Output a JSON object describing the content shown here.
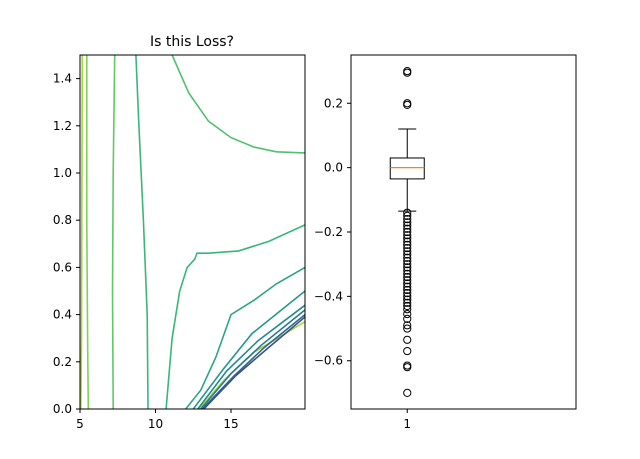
{
  "chart_data": [
    {
      "type": "contour",
      "title": "Is this Loss?",
      "xlabel": "",
      "ylabel": "",
      "xlim": [
        5,
        19.9
      ],
      "ylim": [
        0,
        1.5
      ],
      "xticks": [
        5,
        10,
        15
      ],
      "yticks": [
        0.0,
        0.2,
        0.4,
        0.6,
        0.8,
        1.0,
        1.2,
        1.4
      ],
      "xtick_labels": [
        "5",
        "10",
        "15"
      ],
      "ytick_labels": [
        "0.0",
        "0.2",
        "0.4",
        "0.6",
        "0.8",
        "1.0",
        "1.2",
        "1.4"
      ],
      "grid": false,
      "contours": [
        {
          "color": "#a7d63a",
          "points": [
            [
              5.15,
              1.5
            ],
            [
              5.12,
              0.8
            ],
            [
              5.1,
              0.3
            ],
            [
              5.05,
              0.0
            ]
          ]
        },
        {
          "color": "#a7d63a",
          "points": [
            [
              12.9,
              0.0
            ],
            [
              14.5,
              0.12
            ],
            [
              16.5,
              0.24
            ],
            [
              19.9,
              0.37
            ]
          ]
        },
        {
          "color": "#7fd15a",
          "points": [
            [
              5.45,
              1.5
            ],
            [
              5.45,
              0.8
            ],
            [
              5.5,
              0.3
            ],
            [
              5.55,
              0.0
            ]
          ]
        },
        {
          "color": "#5ec962",
          "points": [
            [
              7.3,
              1.5
            ],
            [
              7.2,
              1.0
            ],
            [
              7.15,
              0.5
            ],
            [
              7.2,
              0.0
            ]
          ]
        },
        {
          "color": "#4fc16b",
          "points": [
            [
              11.1,
              1.5
            ],
            [
              12.2,
              1.34
            ],
            [
              13.5,
              1.22
            ],
            [
              15.0,
              1.15
            ],
            [
              16.5,
              1.11
            ],
            [
              18.0,
              1.09
            ],
            [
              19.9,
              1.085
            ]
          ]
        },
        {
          "color": "#3bb67a",
          "points": [
            [
              8.7,
              1.5
            ],
            [
              8.9,
              1.2
            ],
            [
              9.2,
              0.8
            ],
            [
              9.45,
              0.4
            ],
            [
              9.5,
              0.0
            ]
          ]
        },
        {
          "color": "#35b77a",
          "points": [
            [
              10.7,
              0.0
            ],
            [
              11.1,
              0.3
            ],
            [
              11.6,
              0.5
            ],
            [
              12.1,
              0.6
            ],
            [
              12.6,
              0.635
            ],
            [
              12.75,
              0.66
            ],
            [
              13.5,
              0.66
            ],
            [
              15.5,
              0.67
            ],
            [
              17.5,
              0.71
            ],
            [
              19.9,
              0.78
            ]
          ]
        },
        {
          "color": "#2ea389",
          "points": [
            [
              12.0,
              0.0
            ],
            [
              13.0,
              0.08
            ],
            [
              14.0,
              0.22
            ],
            [
              15.0,
              0.4
            ],
            [
              16.5,
              0.46
            ],
            [
              18.0,
              0.53
            ],
            [
              19.9,
              0.6
            ]
          ]
        },
        {
          "color": "#23968b",
          "points": [
            [
              12.5,
              0.0
            ],
            [
              14.5,
              0.17
            ],
            [
              16.4,
              0.32
            ],
            [
              19.9,
              0.5
            ]
          ]
        },
        {
          "color": "#23898e",
          "points": [
            [
              12.8,
              0.0
            ],
            [
              14.7,
              0.16
            ],
            [
              16.8,
              0.29
            ],
            [
              19.9,
              0.44
            ]
          ]
        },
        {
          "color": "#2a788e",
          "points": [
            [
              13.0,
              0.0
            ],
            [
              15.0,
              0.15
            ],
            [
              17.0,
              0.27
            ],
            [
              19.9,
              0.42
            ]
          ]
        },
        {
          "color": "#30688e",
          "points": [
            [
              13.1,
              0.0
            ],
            [
              15.2,
              0.14
            ],
            [
              17.2,
              0.26
            ],
            [
              19.9,
              0.4
            ]
          ]
        },
        {
          "color": "#3b528b",
          "points": [
            [
              13.2,
              0.0
            ],
            [
              15.3,
              0.14
            ],
            [
              17.3,
              0.25
            ],
            [
              19.9,
              0.39
            ]
          ]
        }
      ]
    },
    {
      "type": "box",
      "title": "",
      "xlabel": "",
      "ylabel": "",
      "ylim": [
        -0.75,
        0.35
      ],
      "yticks": [
        -0.6,
        -0.4,
        -0.2,
        0.0,
        0.2
      ],
      "ytick_labels": [
        "−0.6",
        "−0.4",
        "−0.2",
        "0.0",
        "0.2"
      ],
      "xticks": [
        1
      ],
      "xtick_labels": [
        "1"
      ],
      "grid": false,
      "box": {
        "position": 1,
        "q1": -0.035,
        "median": 0.0,
        "q3": 0.03,
        "whisker_low": -0.135,
        "whisker_high": 0.12,
        "outliers": [
          0.295,
          0.3,
          0.2,
          0.195,
          -0.7,
          -0.62,
          -0.615,
          -0.57,
          -0.535,
          -0.5,
          -0.49,
          -0.47,
          -0.455,
          -0.44,
          -0.43,
          -0.42,
          -0.41,
          -0.4,
          -0.39,
          -0.38,
          -0.37,
          -0.36,
          -0.35,
          -0.34,
          -0.33,
          -0.32,
          -0.31,
          -0.3,
          -0.29,
          -0.28,
          -0.27,
          -0.26,
          -0.25,
          -0.24,
          -0.23,
          -0.22,
          -0.21,
          -0.2,
          -0.19,
          -0.18,
          -0.17,
          -0.16,
          -0.15,
          -0.14
        ]
      },
      "colors": {
        "box": "#000000",
        "median": "#ff7f0e",
        "outlier": "#000000"
      }
    }
  ]
}
